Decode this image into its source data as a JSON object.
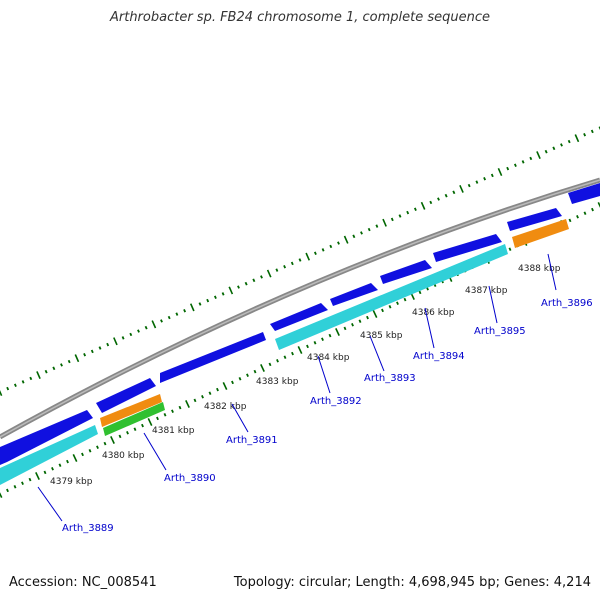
{
  "title": "Arthrobacter sp. FB24 chromosome 1, complete sequence",
  "footer": {
    "accession": "Accession: NC_008541",
    "summary": "Topology: circular; Length: 4,698,945 bp; Genes: 4,214"
  },
  "colors": {
    "backbone": "#888888",
    "forward_cds": "#1010e0",
    "reverse_cds": "#30d0d8",
    "orange_feature": "#f08c10",
    "green_feature": "#30c030",
    "tick": "#006600",
    "label": "#0000cc"
  },
  "tick_labels": [
    "4379 kbp",
    "4380 kbp",
    "4381 kbp",
    "4382 kbp",
    "4383 kbp",
    "4384 kbp",
    "4385 kbp",
    "4386 kbp",
    "4387 kbp",
    "4388 kbp"
  ],
  "gene_labels": [
    "Arth_3889",
    "Arth_3890",
    "Arth_3891",
    "Arth_3892",
    "Arth_3893",
    "Arth_3894",
    "Arth_3895",
    "Arth_3896"
  ]
}
